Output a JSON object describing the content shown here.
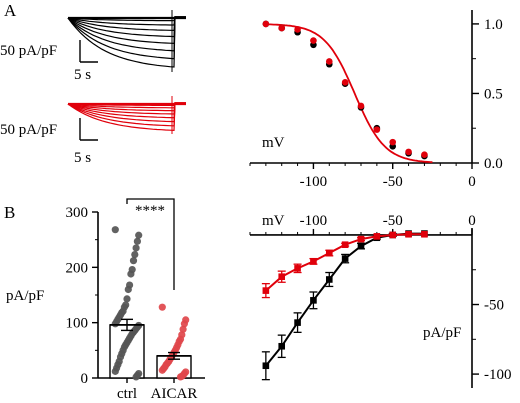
{
  "colors": {
    "black": "#000000",
    "red": "#e0000b",
    "grey": "#555555",
    "pink": "#e0474b"
  },
  "panels": {
    "a": "A",
    "b": "B"
  },
  "traces": {
    "ctrl": {
      "scale_y": "50 pA/pF",
      "scale_x": "5 s"
    },
    "aicar": {
      "scale_y": "50 pA/pF",
      "scale_x": "5 s"
    }
  },
  "chart_data": [
    {
      "id": "activation",
      "type": "scatter",
      "xlabel": "mV",
      "ylabel": "",
      "xlim": [
        -140,
        0
      ],
      "ylim": [
        0,
        1.1
      ],
      "xticks": [
        -100,
        -50,
        0
      ],
      "yticks": [
        0.0,
        0.5,
        1.0
      ],
      "yticklabels": [
        "0.0",
        "0.5",
        "1.0"
      ],
      "series": [
        {
          "color": "black",
          "x": [
            -130,
            -120,
            -110,
            -100,
            -90,
            -80,
            -70,
            -60,
            -50,
            -40,
            -30
          ],
          "y": [
            1.0,
            0.97,
            0.94,
            0.85,
            0.71,
            0.57,
            0.4,
            0.25,
            0.12,
            0.07,
            0.05
          ]
        },
        {
          "color": "red",
          "x": [
            -130,
            -120,
            -110,
            -100,
            -90,
            -80,
            -70,
            -60,
            -50,
            -40,
            -30
          ],
          "y": [
            1.0,
            0.97,
            0.96,
            0.88,
            0.73,
            0.58,
            0.41,
            0.24,
            0.15,
            0.08,
            0.06
          ]
        }
      ],
      "fit": {
        "v_half": -74,
        "slope": 9.5
      }
    },
    {
      "id": "current_density",
      "type": "bar",
      "categories": [
        "ctrl",
        "AICAR"
      ],
      "values": [
        96,
        40
      ],
      "errors": [
        10,
        6
      ],
      "ylabel": "pA/pF",
      "ylim": [
        0,
        300
      ],
      "yticks": [
        0,
        100,
        200,
        300
      ],
      "significance": "****",
      "points": [
        [
          268,
          258,
          247,
          235,
          223,
          212,
          196,
          188,
          168,
          160,
          143,
          132,
          128,
          121,
          118,
          114,
          110,
          106,
          102,
          98,
          95,
          92,
          89,
          86,
          83,
          80,
          76,
          72,
          68,
          64,
          60,
          56,
          50,
          44,
          38,
          30,
          24,
          18,
          12,
          8,
          5,
          2
        ],
        [
          128,
          105,
          98,
          88,
          78,
          70,
          66,
          60,
          55,
          50,
          46,
          42,
          38,
          34,
          30,
          27,
          24,
          20,
          17,
          14,
          11,
          8,
          5,
          3,
          2
        ]
      ]
    },
    {
      "id": "iv_curve",
      "type": "line",
      "xlabel": "mV",
      "ylabel": "pA/pF",
      "xlim": [
        -140,
        0
      ],
      "ylim": [
        -110,
        5
      ],
      "xticks": [
        -100,
        -50,
        0
      ],
      "yticks": [
        -100,
        -50
      ],
      "series": [
        {
          "color": "black",
          "x": [
            -130,
            -120,
            -110,
            -100,
            -90,
            -80,
            -70,
            -60,
            -50,
            -40,
            -30
          ],
          "y": [
            -94,
            -80,
            -63,
            -47,
            -32,
            -17,
            -8,
            -2,
            0,
            1,
            1
          ],
          "err": [
            10,
            8,
            7,
            6,
            5,
            3,
            2,
            1,
            1,
            0.5,
            0.5
          ]
        },
        {
          "color": "red",
          "x": [
            -130,
            -120,
            -110,
            -100,
            -90,
            -80,
            -70,
            -60,
            -50,
            -40,
            -30
          ],
          "y": [
            -40,
            -30,
            -24,
            -19,
            -13,
            -7,
            -3,
            -1,
            0,
            0.5,
            0.5
          ],
          "err": [
            5,
            4,
            3,
            2,
            2,
            1,
            1,
            0.5,
            0.5,
            0.3,
            0.3
          ]
        }
      ]
    }
  ]
}
